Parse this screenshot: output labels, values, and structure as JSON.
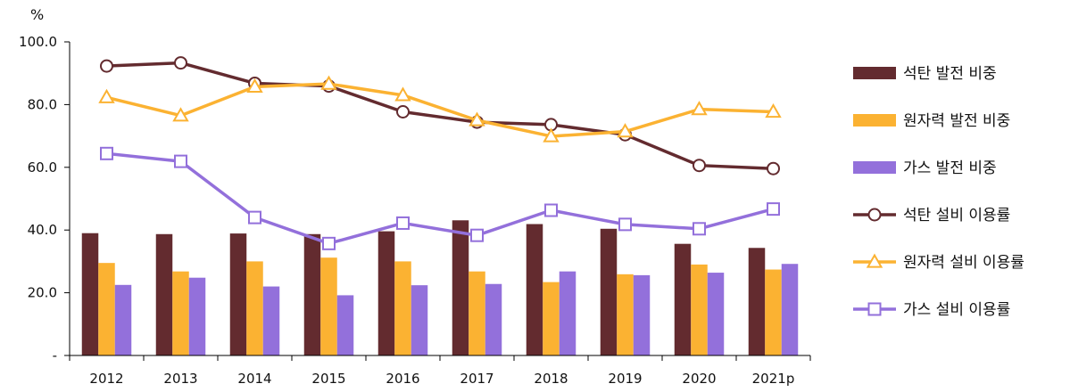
{
  "chart_data": {
    "type": "bar",
    "title": "",
    "unit_label": "%",
    "categories": [
      "2012",
      "2013",
      "2014",
      "2015",
      "2016",
      "2017",
      "2018",
      "2019",
      "2020",
      "2021p"
    ],
    "ylim": [
      0,
      100
    ],
    "y_ticks": [
      "-",
      "20.0",
      "40.0",
      "60.0",
      "80.0",
      "100.0"
    ],
    "grid": false,
    "legend_position": "right",
    "bar_series": [
      {
        "name": "석탄 발전 비중",
        "color": "#632b2f",
        "values": [
          39.0,
          38.7,
          38.9,
          38.7,
          39.6,
          43.1,
          41.9,
          40.4,
          35.6,
          34.3
        ]
      },
      {
        "name": "원자력 발전 비중",
        "color": "#fbb232",
        "values": [
          29.5,
          26.8,
          30.0,
          31.2,
          30.0,
          26.8,
          23.4,
          25.9,
          29.0,
          27.4
        ]
      },
      {
        "name": "가스 발전 비중",
        "color": "#9370db",
        "values": [
          22.5,
          24.8,
          22.0,
          19.2,
          22.4,
          22.8,
          26.8,
          25.6,
          26.4,
          29.2
        ]
      }
    ],
    "line_series": [
      {
        "name": "석탄 설비 이용률",
        "color": "#632b2f",
        "marker": "circle",
        "values": [
          92.3,
          93.3,
          86.8,
          85.9,
          77.7,
          74.4,
          73.6,
          70.4,
          60.6,
          59.6
        ]
      },
      {
        "name": "원자력 설비 이용률",
        "color": "#fbb232",
        "marker": "triangle",
        "values": [
          82.3,
          76.5,
          85.7,
          86.6,
          83.0,
          75.0,
          69.9,
          71.4,
          78.5,
          77.7
        ]
      },
      {
        "name": "가스 설비 이용률",
        "color": "#9370db",
        "marker": "square",
        "values": [
          64.4,
          61.9,
          44.0,
          35.7,
          42.2,
          38.3,
          46.3,
          41.8,
          40.4,
          46.7
        ]
      }
    ]
  }
}
